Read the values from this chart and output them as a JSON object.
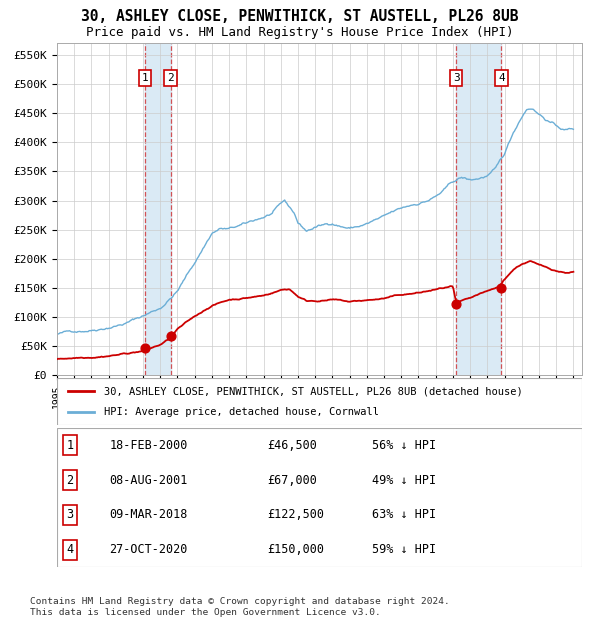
{
  "title": "30, ASHLEY CLOSE, PENWITHICK, ST AUSTELL, PL26 8UB",
  "subtitle": "Price paid vs. HM Land Registry's House Price Index (HPI)",
  "xlim": [
    1995.0,
    2025.5
  ],
  "ylim": [
    0,
    570000
  ],
  "yticks": [
    0,
    50000,
    100000,
    150000,
    200000,
    250000,
    300000,
    350000,
    400000,
    450000,
    500000,
    550000
  ],
  "ytick_labels": [
    "£0",
    "£50K",
    "£100K",
    "£150K",
    "£200K",
    "£250K",
    "£300K",
    "£350K",
    "£400K",
    "£450K",
    "£500K",
    "£550K"
  ],
  "xtick_years": [
    1995,
    1996,
    1997,
    1998,
    1999,
    2000,
    2001,
    2002,
    2003,
    2004,
    2005,
    2006,
    2007,
    2008,
    2009,
    2010,
    2011,
    2012,
    2013,
    2014,
    2015,
    2016,
    2017,
    2018,
    2019,
    2020,
    2021,
    2022,
    2023,
    2024,
    2025
  ],
  "sale_dates": [
    2000.12,
    2001.6,
    2018.19,
    2020.82
  ],
  "sale_prices": [
    46500,
    67000,
    122500,
    150000
  ],
  "sale_labels": [
    "1",
    "2",
    "3",
    "4"
  ],
  "hpi_color": "#6baed6",
  "sale_color": "#cc0000",
  "shade_color": "#daeaf5",
  "grid_color": "#cccccc",
  "legend_label_sale": "30, ASHLEY CLOSE, PENWITHICK, ST AUSTELL, PL26 8UB (detached house)",
  "legend_label_hpi": "HPI: Average price, detached house, Cornwall",
  "table_entries": [
    {
      "num": "1",
      "date": "18-FEB-2000",
      "price": "£46,500",
      "note": "56% ↓ HPI"
    },
    {
      "num": "2",
      "date": "08-AUG-2001",
      "price": "£67,000",
      "note": "49% ↓ HPI"
    },
    {
      "num": "3",
      "date": "09-MAR-2018",
      "price": "£122,500",
      "note": "63% ↓ HPI"
    },
    {
      "num": "4",
      "date": "27-OCT-2020",
      "price": "£150,000",
      "note": "59% ↓ HPI"
    }
  ],
  "footer": "Contains HM Land Registry data © Crown copyright and database right 2024.\nThis data is licensed under the Open Government Licence v3.0.",
  "hpi_keypoints": [
    [
      1995.0,
      70000
    ],
    [
      1996.0,
      75000
    ],
    [
      1997.0,
      80000
    ],
    [
      1998.0,
      88000
    ],
    [
      1999.0,
      96000
    ],
    [
      2000.0,
      108000
    ],
    [
      2001.0,
      122000
    ],
    [
      2002.0,
      152000
    ],
    [
      2003.0,
      200000
    ],
    [
      2004.0,
      252000
    ],
    [
      2004.5,
      260000
    ],
    [
      2005.0,
      258000
    ],
    [
      2005.5,
      262000
    ],
    [
      2006.0,
      265000
    ],
    [
      2007.0,
      276000
    ],
    [
      2007.5,
      282000
    ],
    [
      2008.2,
      300000
    ],
    [
      2008.8,
      278000
    ],
    [
      2009.0,
      262000
    ],
    [
      2009.5,
      248000
    ],
    [
      2010.0,
      255000
    ],
    [
      2010.5,
      258000
    ],
    [
      2011.0,
      262000
    ],
    [
      2011.5,
      258000
    ],
    [
      2012.0,
      255000
    ],
    [
      2012.5,
      258000
    ],
    [
      2013.0,
      262000
    ],
    [
      2013.5,
      268000
    ],
    [
      2014.0,
      272000
    ],
    [
      2014.5,
      278000
    ],
    [
      2015.0,
      283000
    ],
    [
      2015.5,
      288000
    ],
    [
      2016.0,
      293000
    ],
    [
      2016.5,
      298000
    ],
    [
      2017.0,
      305000
    ],
    [
      2017.5,
      315000
    ],
    [
      2018.0,
      328000
    ],
    [
      2018.5,
      335000
    ],
    [
      2019.0,
      330000
    ],
    [
      2019.5,
      333000
    ],
    [
      2020.0,
      338000
    ],
    [
      2020.5,
      348000
    ],
    [
      2021.0,
      372000
    ],
    [
      2021.5,
      408000
    ],
    [
      2022.0,
      438000
    ],
    [
      2022.3,
      452000
    ],
    [
      2022.6,
      455000
    ],
    [
      2023.0,
      445000
    ],
    [
      2023.5,
      435000
    ],
    [
      2024.0,
      425000
    ],
    [
      2024.5,
      418000
    ],
    [
      2025.0,
      420000
    ]
  ],
  "sale_keypoints": [
    [
      1995.0,
      27000
    ],
    [
      1996.0,
      30000
    ],
    [
      1997.0,
      33000
    ],
    [
      1998.0,
      37000
    ],
    [
      1999.0,
      41000
    ],
    [
      2000.12,
      46500
    ],
    [
      2001.0,
      56000
    ],
    [
      2001.6,
      67000
    ],
    [
      2002.0,
      82000
    ],
    [
      2003.0,
      102000
    ],
    [
      2004.0,
      122000
    ],
    [
      2005.0,
      132000
    ],
    [
      2006.0,
      136000
    ],
    [
      2007.0,
      140000
    ],
    [
      2008.0,
      150000
    ],
    [
      2008.5,
      152000
    ],
    [
      2009.0,
      140000
    ],
    [
      2009.5,
      132000
    ],
    [
      2010.0,
      133000
    ],
    [
      2011.0,
      135000
    ],
    [
      2012.0,
      130000
    ],
    [
      2013.0,
      132000
    ],
    [
      2014.0,
      135000
    ],
    [
      2015.0,
      140000
    ],
    [
      2016.0,
      143000
    ],
    [
      2017.0,
      148000
    ],
    [
      2017.8,
      152000
    ],
    [
      2018.0,
      152000
    ],
    [
      2018.19,
      122500
    ],
    [
      2018.5,
      125000
    ],
    [
      2019.0,
      128000
    ],
    [
      2019.5,
      134000
    ],
    [
      2020.0,
      138000
    ],
    [
      2020.5,
      143000
    ],
    [
      2020.82,
      150000
    ],
    [
      2021.0,
      158000
    ],
    [
      2021.5,
      175000
    ],
    [
      2022.0,
      185000
    ],
    [
      2022.5,
      190000
    ],
    [
      2023.0,
      182000
    ],
    [
      2023.5,
      177000
    ],
    [
      2024.0,
      173000
    ],
    [
      2024.5,
      170000
    ],
    [
      2025.0,
      172000
    ]
  ]
}
